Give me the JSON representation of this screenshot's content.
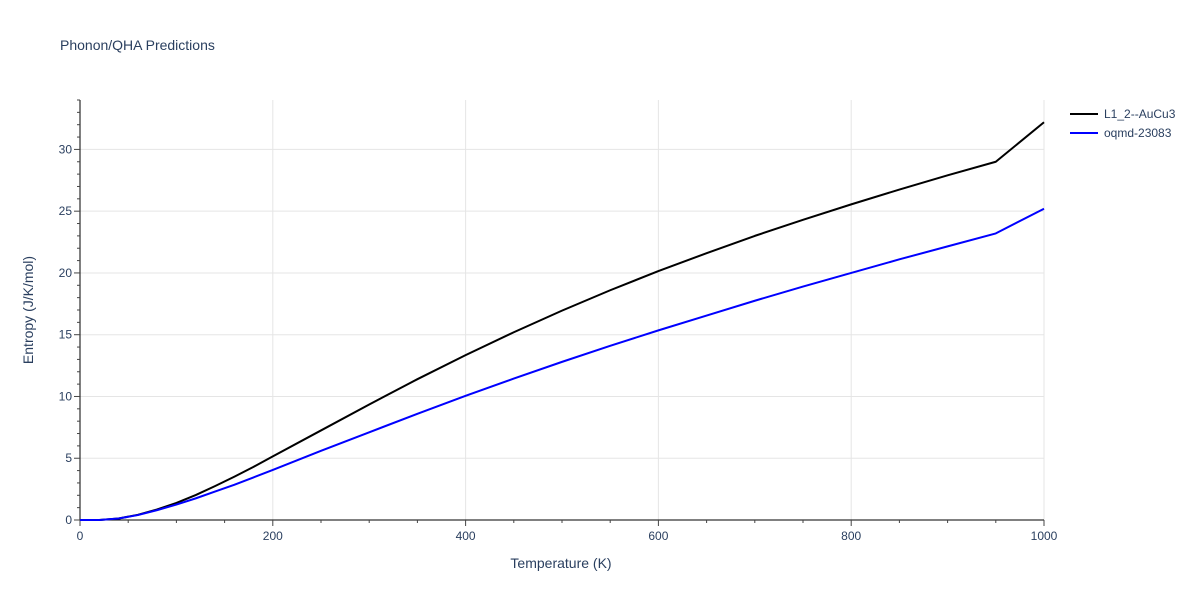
{
  "chart_data": {
    "type": "line",
    "title": "Phonon/QHA Predictions",
    "xlabel": "Temperature (K)",
    "ylabel": "Entropy (J/K/mol)",
    "xlim": [
      0,
      1000
    ],
    "ylim": [
      0,
      34
    ],
    "x_ticks": [
      0,
      200,
      400,
      600,
      800,
      1000
    ],
    "x_tick_labels": [
      "0",
      "200",
      "400",
      "600",
      "800",
      "1000"
    ],
    "y_ticks": [
      0,
      5,
      10,
      15,
      20,
      25,
      30
    ],
    "y_tick_labels": [
      "0",
      "5",
      "10",
      "15",
      "20",
      "25",
      "30"
    ],
    "grid": true,
    "legend_position": "top-right",
    "series": [
      {
        "name": "L1_2--AuCu3",
        "color": "#000000",
        "points": [
          [
            0,
            0
          ],
          [
            20,
            0.0
          ],
          [
            40,
            0.12
          ],
          [
            60,
            0.42
          ],
          [
            80,
            0.85
          ],
          [
            100,
            1.38
          ],
          [
            120,
            2.02
          ],
          [
            140,
            2.74
          ],
          [
            160,
            3.5
          ],
          [
            180,
            4.3
          ],
          [
            200,
            5.15
          ],
          [
            250,
            7.25
          ],
          [
            300,
            9.35
          ],
          [
            350,
            11.4
          ],
          [
            400,
            13.35
          ],
          [
            450,
            15.2
          ],
          [
            500,
            16.95
          ],
          [
            550,
            18.6
          ],
          [
            600,
            20.15
          ],
          [
            650,
            21.6
          ],
          [
            700,
            23.0
          ],
          [
            750,
            24.3
          ],
          [
            800,
            25.55
          ],
          [
            850,
            26.75
          ],
          [
            900,
            27.9
          ],
          [
            950,
            29.0
          ],
          [
            1000,
            32.2
          ]
        ]
      },
      {
        "name": "oqmd-23083",
        "color": "#0000ff",
        "points": [
          [
            0,
            0
          ],
          [
            20,
            0.0
          ],
          [
            40,
            0.12
          ],
          [
            60,
            0.4
          ],
          [
            80,
            0.8
          ],
          [
            100,
            1.25
          ],
          [
            120,
            1.75
          ],
          [
            140,
            2.3
          ],
          [
            160,
            2.85
          ],
          [
            180,
            3.45
          ],
          [
            200,
            4.05
          ],
          [
            250,
            5.6
          ],
          [
            300,
            7.1
          ],
          [
            350,
            8.6
          ],
          [
            400,
            10.05
          ],
          [
            450,
            11.45
          ],
          [
            500,
            12.8
          ],
          [
            550,
            14.1
          ],
          [
            600,
            15.35
          ],
          [
            650,
            16.55
          ],
          [
            700,
            17.75
          ],
          [
            750,
            18.9
          ],
          [
            800,
            20.0
          ],
          [
            850,
            21.1
          ],
          [
            900,
            22.15
          ],
          [
            950,
            23.2
          ],
          [
            1000,
            25.2
          ]
        ]
      }
    ]
  }
}
